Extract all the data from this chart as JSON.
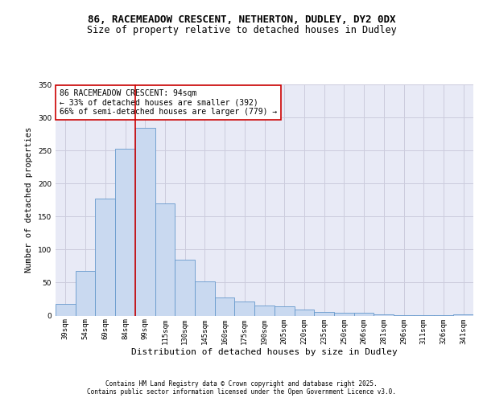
{
  "title1": "86, RACEMEADOW CRESCENT, NETHERTON, DUDLEY, DY2 0DX",
  "title2": "Size of property relative to detached houses in Dudley",
  "xlabel": "Distribution of detached houses by size in Dudley",
  "ylabel": "Number of detached properties",
  "categories": [
    "39sqm",
    "54sqm",
    "69sqm",
    "84sqm",
    "99sqm",
    "115sqm",
    "130sqm",
    "145sqm",
    "160sqm",
    "175sqm",
    "190sqm",
    "205sqm",
    "220sqm",
    "235sqm",
    "250sqm",
    "266sqm",
    "281sqm",
    "296sqm",
    "311sqm",
    "326sqm",
    "341sqm"
  ],
  "values": [
    18,
    67,
    177,
    253,
    284,
    170,
    85,
    52,
    28,
    21,
    15,
    14,
    9,
    6,
    4,
    4,
    2,
    1,
    1,
    1,
    2
  ],
  "bar_color": "#c9d9f0",
  "bar_edge_color": "#6699cc",
  "grid_color": "#ccccdd",
  "background_color": "#e8eaf6",
  "annotation_text": "86 RACEMEADOW CRESCENT: 94sqm\n← 33% of detached houses are smaller (392)\n66% of semi-detached houses are larger (779) →",
  "red_line_index": 4,
  "red_line_color": "#cc0000",
  "ylim": [
    0,
    350
  ],
  "annotation_box_color": "#ffffff",
  "annotation_box_edge_color": "#cc0000",
  "footnote1": "Contains HM Land Registry data © Crown copyright and database right 2025.",
  "footnote2": "Contains public sector information licensed under the Open Government Licence v3.0.",
  "title_fontsize": 9,
  "subtitle_fontsize": 8.5,
  "tick_fontsize": 6.5,
  "ylabel_fontsize": 7.5,
  "xlabel_fontsize": 8,
  "annotation_fontsize": 7,
  "footnote_fontsize": 5.5
}
